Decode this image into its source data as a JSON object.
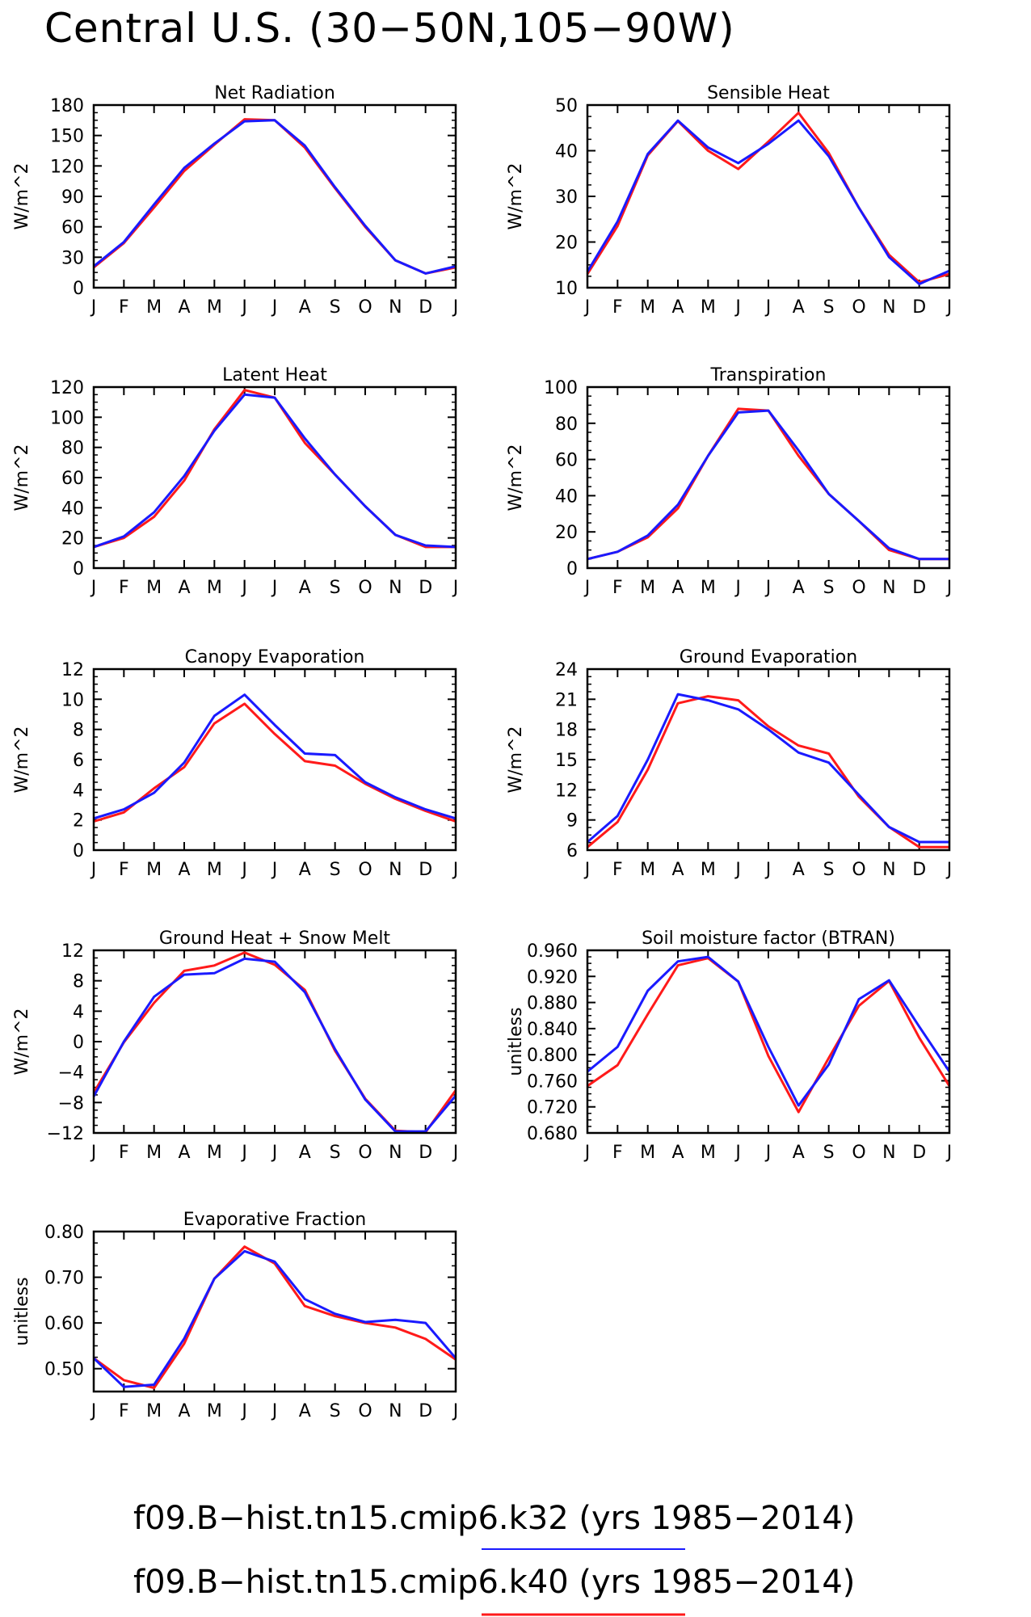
{
  "figure_title": "Central U.S. (30−50N,105−90W)",
  "legend": [
    {
      "label": "f09.B−hist.tn15.cmip6.k32 (yrs 1985−2014)",
      "color": "#1a1aff"
    },
    {
      "label": "f09.B−hist.tn15.cmip6.k40 (yrs 1985−2014)",
      "color": "#ff1a1a"
    }
  ],
  "chart_data": [
    {
      "type": "line",
      "title": "Net Radiation",
      "ylabel": "W/m^2",
      "ylim": [
        0,
        180
      ],
      "yticks": [
        0,
        30,
        60,
        90,
        120,
        150,
        180
      ],
      "tick_decimals": 0,
      "categories": [
        "J",
        "F",
        "M",
        "A",
        "M",
        "J",
        "J",
        "A",
        "S",
        "O",
        "N",
        "D",
        "J"
      ],
      "series": [
        {
          "color": "#ff1a1a",
          "values": [
            20,
            44,
            79,
            115,
            141,
            166,
            165,
            138,
            98,
            60,
            27,
            14,
            20
          ]
        },
        {
          "color": "#1a1aff",
          "values": [
            21,
            45,
            82,
            118,
            142,
            164,
            165,
            140,
            99,
            61,
            27,
            14,
            21
          ]
        }
      ]
    },
    {
      "type": "line",
      "title": "Sensible Heat",
      "ylabel": "W/m^2",
      "ylim": [
        10,
        50
      ],
      "yticks": [
        10,
        20,
        30,
        40,
        50
      ],
      "tick_decimals": 0,
      "categories": [
        "J",
        "F",
        "M",
        "A",
        "M",
        "J",
        "J",
        "A",
        "S",
        "O",
        "N",
        "D",
        "J"
      ],
      "series": [
        {
          "color": "#ff1a1a",
          "values": [
            13,
            23.5,
            39,
            46.5,
            40,
            36,
            42,
            48.3,
            39.5,
            27.5,
            17.2,
            11.2,
            13
          ]
        },
        {
          "color": "#1a1aff",
          "values": [
            13.5,
            24.5,
            39.3,
            46.6,
            40.7,
            37.3,
            41.5,
            46.6,
            38.8,
            27.5,
            16.7,
            10.8,
            13.7
          ]
        }
      ]
    },
    {
      "type": "line",
      "title": "Latent Heat",
      "ylabel": "W/m^2",
      "ylim": [
        0,
        120
      ],
      "yticks": [
        0,
        20,
        40,
        60,
        80,
        100,
        120
      ],
      "tick_decimals": 0,
      "categories": [
        "J",
        "F",
        "M",
        "A",
        "M",
        "J",
        "J",
        "A",
        "S",
        "O",
        "N",
        "D",
        "J"
      ],
      "series": [
        {
          "color": "#ff1a1a",
          "values": [
            14,
            20,
            34,
            58,
            92,
            118,
            113,
            83,
            62,
            41,
            22,
            14,
            14
          ]
        },
        {
          "color": "#1a1aff",
          "values": [
            14,
            21,
            37,
            61,
            91,
            115,
            113,
            86,
            62,
            41,
            22,
            15,
            14
          ]
        }
      ]
    },
    {
      "type": "line",
      "title": "Transpiration",
      "ylabel": "W/m^2",
      "ylim": [
        0,
        100
      ],
      "yticks": [
        0,
        20,
        40,
        60,
        80,
        100
      ],
      "tick_decimals": 0,
      "categories": [
        "J",
        "F",
        "M",
        "A",
        "M",
        "J",
        "J",
        "A",
        "S",
        "O",
        "N",
        "D",
        "J"
      ],
      "series": [
        {
          "color": "#ff1a1a",
          "values": [
            5,
            9,
            17,
            33,
            62,
            88,
            87,
            62,
            41,
            26,
            10,
            5,
            5
          ]
        },
        {
          "color": "#1a1aff",
          "values": [
            5,
            9,
            18,
            35,
            62,
            86,
            87,
            65,
            41,
            26,
            11,
            5,
            5
          ]
        }
      ]
    },
    {
      "type": "line",
      "title": "Canopy Evaporation",
      "ylabel": "W/m^2",
      "ylim": [
        0,
        12
      ],
      "yticks": [
        0,
        2,
        4,
        6,
        8,
        10,
        12
      ],
      "tick_decimals": 0,
      "categories": [
        "J",
        "F",
        "M",
        "A",
        "M",
        "J",
        "J",
        "A",
        "S",
        "O",
        "N",
        "D",
        "J"
      ],
      "series": [
        {
          "color": "#ff1a1a",
          "values": [
            1.9,
            2.5,
            4.1,
            5.5,
            8.4,
            9.7,
            7.7,
            5.9,
            5.6,
            4.4,
            3.4,
            2.6,
            1.9
          ]
        },
        {
          "color": "#1a1aff",
          "values": [
            2.1,
            2.7,
            3.8,
            5.8,
            8.9,
            10.3,
            8.3,
            6.4,
            6.3,
            4.5,
            3.5,
            2.7,
            2.1
          ]
        }
      ]
    },
    {
      "type": "line",
      "title": "Ground Evaporation",
      "ylabel": "W/m^2",
      "ylim": [
        6,
        24
      ],
      "yticks": [
        6,
        9,
        12,
        15,
        18,
        21,
        24
      ],
      "tick_decimals": 0,
      "categories": [
        "J",
        "F",
        "M",
        "A",
        "M",
        "J",
        "J",
        "A",
        "S",
        "O",
        "N",
        "D",
        "J"
      ],
      "series": [
        {
          "color": "#ff1a1a",
          "values": [
            6.3,
            8.8,
            14,
            20.6,
            21.3,
            20.9,
            18.3,
            16.4,
            15.6,
            11.3,
            8.3,
            6.3,
            6.3
          ]
        },
        {
          "color": "#1a1aff",
          "values": [
            6.8,
            9.4,
            15,
            21.5,
            20.9,
            20,
            18,
            15.7,
            14.7,
            11.5,
            8.3,
            6.8,
            6.8
          ]
        }
      ]
    },
    {
      "type": "line",
      "title": "Ground Heat + Snow Melt",
      "ylabel": "W/m^2",
      "ylim": [
        -12,
        12
      ],
      "yticks": [
        -12,
        -8,
        -4,
        0,
        4,
        8,
        12
      ],
      "tick_decimals": 0,
      "categories": [
        "J",
        "F",
        "M",
        "A",
        "M",
        "J",
        "J",
        "A",
        "S",
        "O",
        "N",
        "D",
        "J"
      ],
      "series": [
        {
          "color": "#ff1a1a",
          "values": [
            -6.7,
            -0.1,
            5.1,
            9.3,
            10,
            11.7,
            10.1,
            6.8,
            -1.2,
            -7.5,
            -11.7,
            -11.9,
            -6.4
          ]
        },
        {
          "color": "#1a1aff",
          "values": [
            -7.2,
            0,
            5.9,
            8.8,
            9,
            10.9,
            10.5,
            6.5,
            -1,
            -7.6,
            -11.8,
            -11.8,
            -7.1
          ]
        }
      ]
    },
    {
      "type": "line",
      "title": "Soil moisture factor (BTRAN)",
      "ylabel": "unitless",
      "ylim": [
        0.68,
        0.96
      ],
      "yticks": [
        0.68,
        0.72,
        0.76,
        0.8,
        0.84,
        0.88,
        0.92,
        0.96
      ],
      "tick_decimals": 3,
      "categories": [
        "J",
        "F",
        "M",
        "A",
        "M",
        "J",
        "J",
        "A",
        "S",
        "O",
        "N",
        "D",
        "J"
      ],
      "series": [
        {
          "color": "#ff1a1a",
          "values": [
            0.752,
            0.784,
            0.862,
            0.937,
            0.948,
            0.912,
            0.798,
            0.712,
            0.795,
            0.875,
            0.913,
            0.826,
            0.752
          ]
        },
        {
          "color": "#1a1aff",
          "values": [
            0.774,
            0.812,
            0.898,
            0.943,
            0.95,
            0.912,
            0.812,
            0.722,
            0.785,
            0.885,
            0.914,
            0.843,
            0.774
          ]
        }
      ]
    },
    {
      "type": "line",
      "title": "Evaporative Fraction",
      "ylabel": "unitless",
      "ylim": [
        0.45,
        0.8
      ],
      "yticks": [
        0.5,
        0.6,
        0.7,
        0.8
      ],
      "tick_decimals": 2,
      "categories": [
        "J",
        "F",
        "M",
        "A",
        "M",
        "J",
        "J",
        "A",
        "S",
        "O",
        "N",
        "D",
        "J"
      ],
      "series": [
        {
          "color": "#ff1a1a",
          "values": [
            0.523,
            0.475,
            0.458,
            0.555,
            0.697,
            0.767,
            0.73,
            0.637,
            0.615,
            0.6,
            0.59,
            0.565,
            0.52
          ]
        },
        {
          "color": "#1a1aff",
          "values": [
            0.523,
            0.46,
            0.465,
            0.566,
            0.697,
            0.757,
            0.734,
            0.652,
            0.62,
            0.602,
            0.607,
            0.6,
            0.523
          ]
        }
      ]
    }
  ]
}
